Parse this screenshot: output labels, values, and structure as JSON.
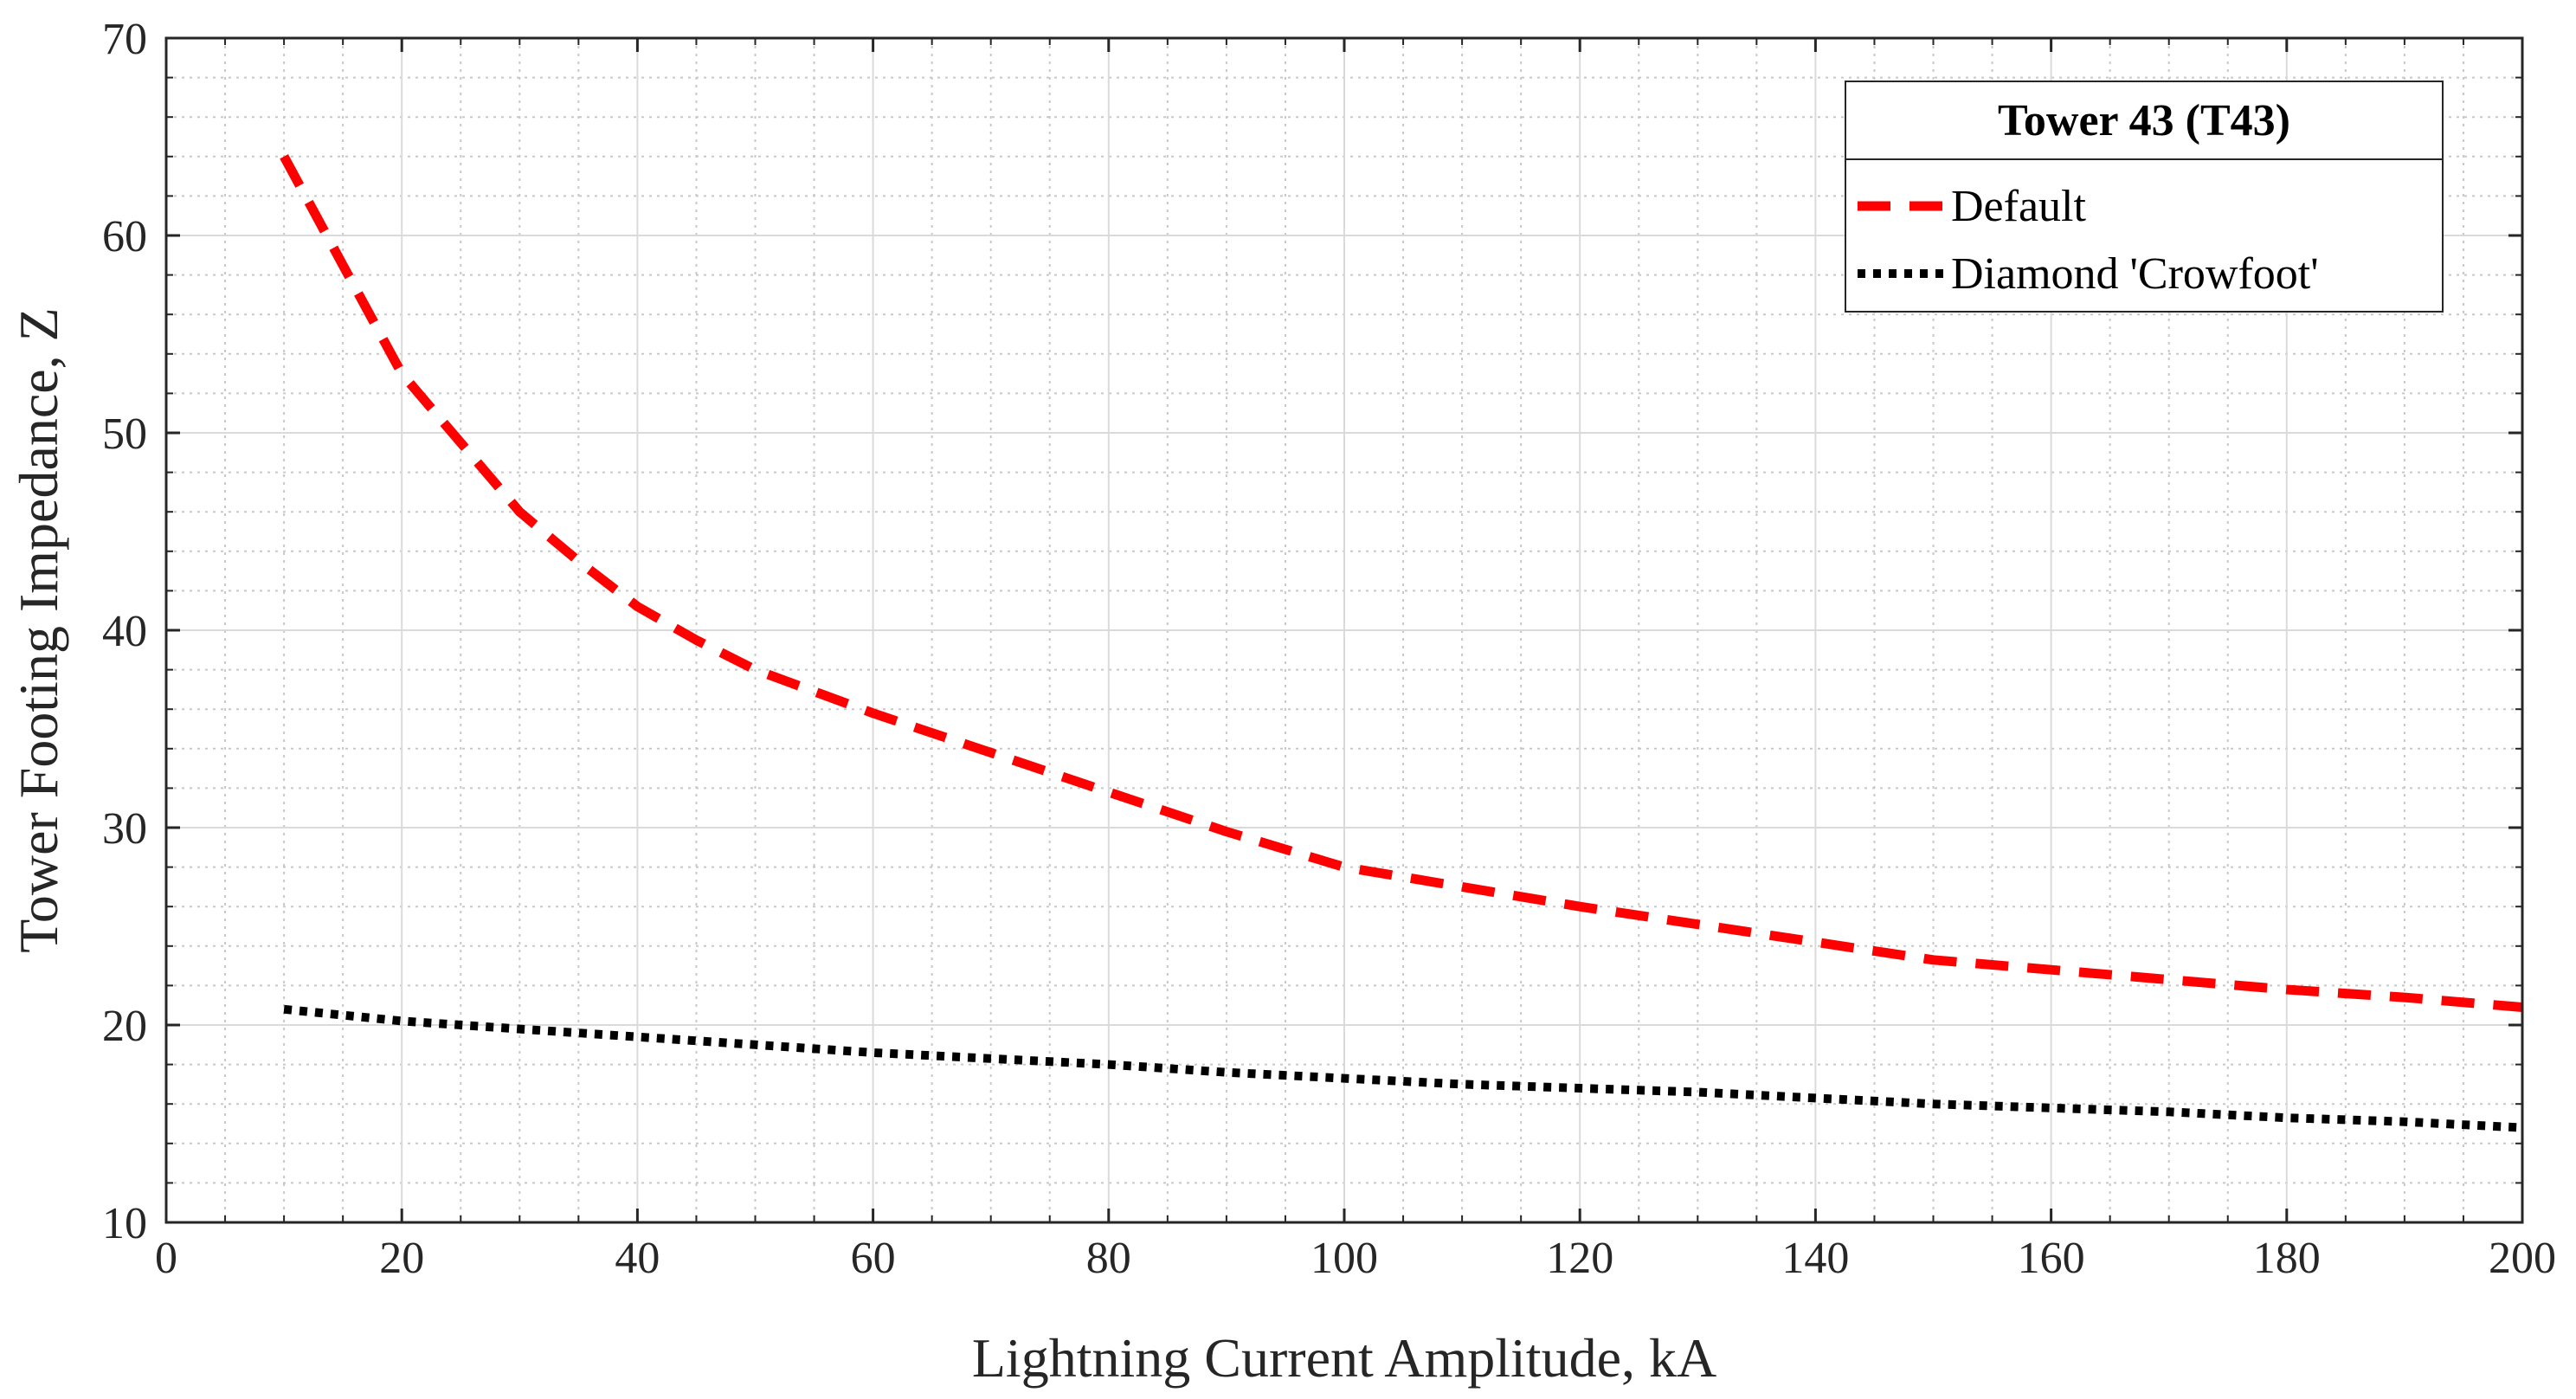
{
  "chart_data": {
    "type": "line",
    "title": "",
    "xlabel": "Lightning Current Amplitude, kA",
    "ylabel": "Tower Footing Impedance, Z",
    "xlim": [
      0,
      200
    ],
    "ylim": [
      10,
      70
    ],
    "xticks": [
      0,
      20,
      40,
      60,
      80,
      100,
      120,
      140,
      160,
      180,
      200
    ],
    "yticks": [
      10,
      20,
      30,
      40,
      50,
      60,
      70
    ],
    "x_minor_step": 5,
    "y_minor_step": 2,
    "grid": true,
    "minor_grid": true,
    "legend": {
      "title": "Tower 43 (T43)",
      "position": "top-right"
    },
    "series": [
      {
        "name": "Default",
        "color": "#ff0000",
        "style": "dashed",
        "x": [
          10,
          15,
          20,
          25,
          30,
          35,
          40,
          45,
          50,
          60,
          70,
          80,
          90,
          100,
          110,
          120,
          130,
          140,
          150,
          160,
          170,
          180,
          190,
          200
        ],
        "y": [
          64.0,
          58.5,
          53.0,
          49.5,
          46.0,
          43.5,
          41.2,
          39.5,
          38.0,
          35.8,
          33.8,
          31.8,
          29.8,
          28.0,
          27.0,
          26.0,
          25.1,
          24.2,
          23.3,
          22.8,
          22.3,
          21.8,
          21.4,
          20.9
        ]
      },
      {
        "name": "Diamond 'Crowfoot'",
        "color": "#000000",
        "style": "dotted",
        "x": [
          10,
          20,
          30,
          40,
          50,
          60,
          70,
          80,
          90,
          100,
          110,
          120,
          130,
          140,
          150,
          160,
          170,
          180,
          190,
          200
        ],
        "y": [
          20.8,
          20.2,
          19.8,
          19.4,
          19.0,
          18.6,
          18.3,
          18.0,
          17.6,
          17.3,
          17.0,
          16.8,
          16.6,
          16.3,
          16.0,
          15.8,
          15.6,
          15.3,
          15.1,
          14.8
        ]
      }
    ]
  }
}
